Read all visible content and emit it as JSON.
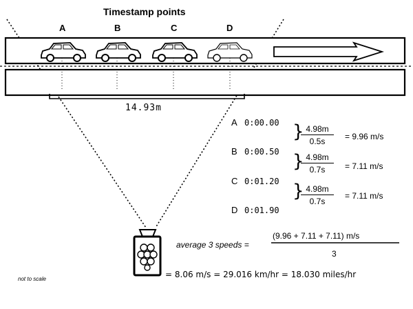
{
  "diagram": {
    "title": "Timestamp points",
    "points": [
      "A",
      "B",
      "C",
      "D"
    ],
    "distance_label": "14.93m",
    "timestamps": [
      {
        "label": "A",
        "time": "0:00.00"
      },
      {
        "label": "B",
        "time": "0:00.50"
      },
      {
        "label": "C",
        "time": "0:01.20"
      },
      {
        "label": "D",
        "time": "0:01.90"
      }
    ],
    "calculations": [
      {
        "numerator": "4.98m",
        "denominator": "0.5s",
        "result": "= 9.96 m/s"
      },
      {
        "numerator": "4.98m",
        "denominator": "0.7s",
        "result": "= 7.11 m/s"
      },
      {
        "numerator": "4.98m",
        "denominator": "0.7s",
        "result": "= 7.11 m/s"
      }
    ],
    "average_label": "average 3 speeds =",
    "average_numerator": "(9.96 + 7.11 + 7.11) m/s",
    "average_denominator": "3",
    "final_result": "= 8.06 m/s = 29.016 km/hr = 18.030 miles/hr",
    "note": "not to scale"
  }
}
